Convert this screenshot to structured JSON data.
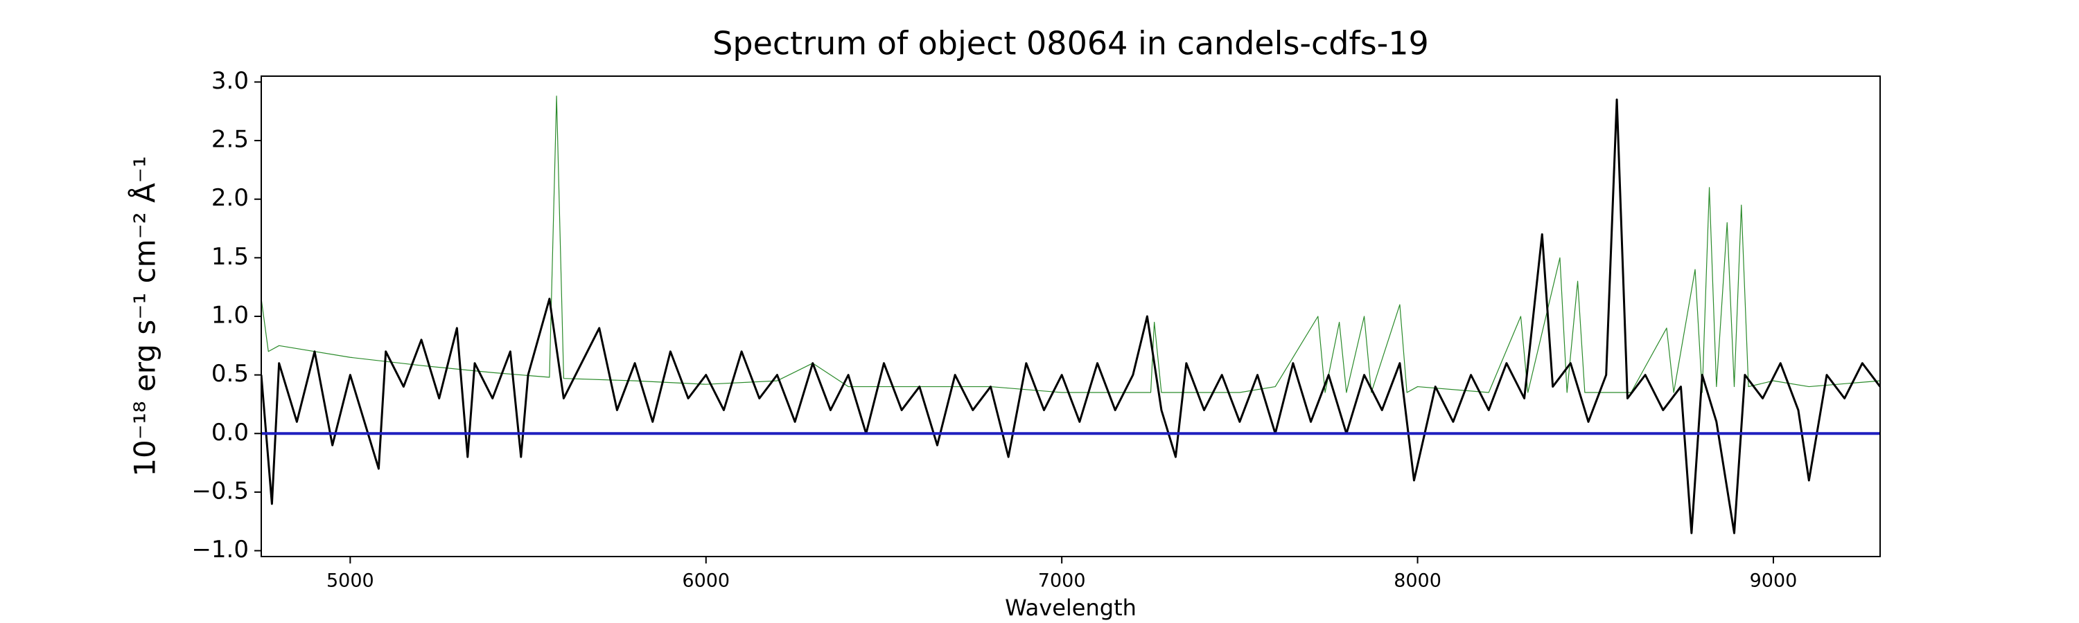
{
  "chart_data": {
    "type": "line",
    "title": "Spectrum of object 08064 in candels-cdfs-19",
    "xlabel": "Wavelength",
    "ylabel": "10⁻¹⁸ erg s⁻¹ cm⁻² Å⁻¹",
    "xlim": [
      4750,
      9300
    ],
    "ylim": [
      -1.05,
      3.05
    ],
    "xticks": [
      5000,
      6000,
      7000,
      8000,
      9000
    ],
    "yticks": [
      {
        "value": -1,
        "label": "−1.0"
      },
      {
        "value": -0.5,
        "label": "−0.5"
      },
      {
        "value": 0,
        "label": "0.0"
      },
      {
        "value": 0.5,
        "label": "0.5"
      },
      {
        "value": 1,
        "label": "1.0"
      },
      {
        "value": 1.5,
        "label": "1.5"
      },
      {
        "value": 2,
        "label": "2.0"
      },
      {
        "value": 2.5,
        "label": "2.5"
      },
      {
        "value": 3,
        "label": "3.0"
      }
    ],
    "series": [
      {
        "color": "#2a8a2a",
        "width": 1.2,
        "x": [
          4750,
          4770,
          4800,
          5000,
          5200,
          5400,
          5560,
          5580,
          5600,
          5800,
          6000,
          6200,
          6300,
          6400,
          6800,
          7000,
          7250,
          7260,
          7280,
          7500,
          7600,
          7720,
          7740,
          7780,
          7800,
          7850,
          7870,
          7950,
          7970,
          8000,
          8200,
          8290,
          8310,
          8400,
          8420,
          8450,
          8470,
          8600,
          8700,
          8720,
          8780,
          8800,
          8820,
          8840,
          8870,
          8890,
          8910,
          8930,
          9000,
          9100,
          9300
        ],
        "values": [
          1.15,
          0.7,
          0.75,
          0.65,
          0.58,
          0.52,
          0.48,
          2.88,
          0.47,
          0.45,
          0.42,
          0.45,
          0.6,
          0.4,
          0.4,
          0.35,
          0.35,
          0.95,
          0.35,
          0.35,
          0.4,
          1.0,
          0.35,
          0.95,
          0.35,
          1.0,
          0.35,
          1.1,
          0.35,
          0.4,
          0.35,
          1.0,
          0.35,
          1.5,
          0.35,
          1.3,
          0.35,
          0.35,
          0.9,
          0.35,
          1.4,
          0.35,
          2.1,
          0.4,
          1.8,
          0.4,
          1.95,
          0.4,
          0.45,
          0.4,
          0.45
        ]
      },
      {
        "color": "#000000",
        "width": 3,
        "x": [
          4750,
          4780,
          4800,
          4850,
          4900,
          4950,
          5000,
          5050,
          5080,
          5100,
          5150,
          5200,
          5250,
          5300,
          5330,
          5350,
          5400,
          5450,
          5480,
          5500,
          5560,
          5600,
          5650,
          5700,
          5750,
          5800,
          5850,
          5900,
          5950,
          6000,
          6050,
          6100,
          6150,
          6200,
          6250,
          6300,
          6350,
          6400,
          6450,
          6500,
          6550,
          6600,
          6650,
          6700,
          6750,
          6800,
          6850,
          6900,
          6950,
          7000,
          7050,
          7100,
          7150,
          7200,
          7240,
          7280,
          7320,
          7350,
          7400,
          7450,
          7500,
          7550,
          7600,
          7650,
          7700,
          7750,
          7800,
          7850,
          7900,
          7950,
          7990,
          8050,
          8100,
          8150,
          8200,
          8250,
          8300,
          8350,
          8380,
          8430,
          8480,
          8530,
          8560,
          8590,
          8640,
          8690,
          8740,
          8770,
          8800,
          8840,
          8890,
          8920,
          8970,
          9020,
          9070,
          9100,
          9150,
          9200,
          9250,
          9300
        ],
        "values": [
          0.5,
          -0.6,
          0.6,
          0.1,
          0.7,
          -0.1,
          0.5,
          0.0,
          -0.3,
          0.7,
          0.4,
          0.8,
          0.3,
          0.9,
          -0.2,
          0.6,
          0.3,
          0.7,
          -0.2,
          0.5,
          1.15,
          0.3,
          0.6,
          0.9,
          0.2,
          0.6,
          0.1,
          0.7,
          0.3,
          0.5,
          0.2,
          0.7,
          0.3,
          0.5,
          0.1,
          0.6,
          0.2,
          0.5,
          0.0,
          0.6,
          0.2,
          0.4,
          -0.1,
          0.5,
          0.2,
          0.4,
          -0.2,
          0.6,
          0.2,
          0.5,
          0.1,
          0.6,
          0.2,
          0.5,
          1.0,
          0.2,
          -0.2,
          0.6,
          0.2,
          0.5,
          0.1,
          0.5,
          0.0,
          0.6,
          0.1,
          0.5,
          0.0,
          0.5,
          0.2,
          0.6,
          -0.4,
          0.4,
          0.1,
          0.5,
          0.2,
          0.6,
          0.3,
          1.7,
          0.4,
          0.6,
          0.1,
          0.5,
          2.85,
          0.3,
          0.5,
          0.2,
          0.4,
          -0.85,
          0.5,
          0.1,
          -0.85,
          0.5,
          0.3,
          0.6,
          0.2,
          -0.4,
          0.5,
          0.3,
          0.6,
          0.4
        ]
      },
      {
        "color": "#1f1fbf",
        "width": 4,
        "x": [
          4750,
          9300
        ],
        "values": [
          0,
          0
        ]
      }
    ]
  }
}
